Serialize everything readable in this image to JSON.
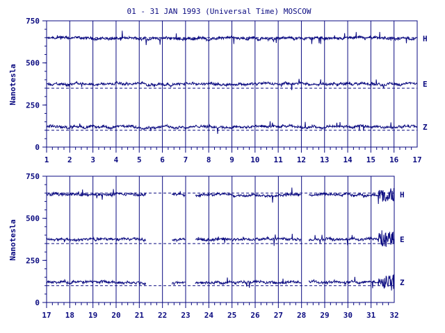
{
  "chart_data": [
    {
      "type": "line",
      "title": "01 - 31 JAN 1993 (Universal Time) MOSCOW",
      "ylabel": "Nanotesla",
      "ylim": [
        0,
        750
      ],
      "yticks": [
        "0",
        "250",
        "500",
        "750"
      ],
      "xlim": [
        1,
        17
      ],
      "xticks": [
        "1",
        "2",
        "3",
        "4",
        "5",
        "6",
        "7",
        "8",
        "9",
        "10",
        "11",
        "12",
        "13",
        "14",
        "15",
        "16",
        "17"
      ],
      "grid": "vertical at each day",
      "series": [
        {
          "name": "H",
          "baseline": 650,
          "level": 645,
          "gaps": []
        },
        {
          "name": "E",
          "baseline": 350,
          "level": 375,
          "gaps": []
        },
        {
          "name": "Z",
          "baseline": 100,
          "level": 120,
          "gaps": []
        }
      ]
    },
    {
      "type": "line",
      "ylabel": "Nanotesla",
      "ylim": [
        0,
        750
      ],
      "yticks": [
        "0",
        "250",
        "500",
        "750"
      ],
      "xlim": [
        17,
        32
      ],
      "xticks": [
        "17",
        "18",
        "19",
        "20",
        "21",
        "22",
        "23",
        "24",
        "25",
        "26",
        "27",
        "28",
        "29",
        "30",
        "31",
        "32"
      ],
      "grid": "vertical at each day",
      "series": [
        {
          "name": "H",
          "baseline": 650,
          "level": 640,
          "gaps": [
            [
              21.3,
              22.4
            ],
            [
              23.0,
              23.4
            ],
            [
              28.0,
              28.3
            ]
          ]
        },
        {
          "name": "E",
          "baseline": 350,
          "level": 375,
          "gaps": [
            [
              21.3,
              22.4
            ],
            [
              23.0,
              23.4
            ],
            [
              28.0,
              28.3
            ]
          ]
        },
        {
          "name": "Z",
          "baseline": 100,
          "level": 120,
          "gaps": [
            [
              21.3,
              22.4
            ],
            [
              23.0,
              23.4
            ],
            [
              28.0,
              28.3
            ]
          ]
        }
      ]
    }
  ]
}
